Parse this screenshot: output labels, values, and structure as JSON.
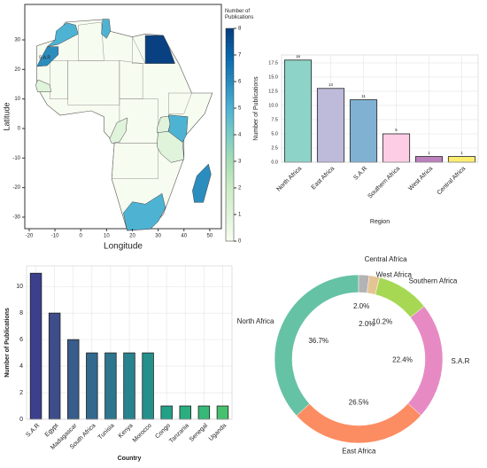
{
  "chart_data": [
    {
      "type": "map",
      "xlabel": "Longitude",
      "ylabel": "Latitude",
      "xlim": [
        -21.7,
        54.5
      ],
      "ylim": [
        -33.9,
        42
      ],
      "xticks": [
        -20,
        -10,
        0,
        10,
        20,
        30,
        40,
        50
      ],
      "yticks": [
        -30,
        -20,
        -10,
        0,
        10,
        20,
        30
      ],
      "colorbar": {
        "label": "Number of Publications",
        "lim": [
          0,
          8
        ],
        "ticks": [
          0,
          1,
          2,
          3,
          4,
          5,
          6,
          7,
          8
        ]
      },
      "values": [
        8,
        6,
        5,
        5,
        5,
        5,
        1,
        1,
        1,
        1
      ],
      "annotation": "S.A.R"
    },
    {
      "type": "bar",
      "xlabel": "Region",
      "ylabel": "Number of Publications",
      "categories": [
        "North Africa",
        "East Africa",
        "S.A.R",
        "Southern Africa",
        "West Africa",
        "Central Africa"
      ],
      "values": [
        18,
        13,
        11,
        5,
        1,
        1
      ],
      "colors": [
        "#8dd3c7",
        "#bebada",
        "#80b1d3",
        "#fccde5",
        "#bc80bd",
        "#ffed6f"
      ],
      "ylim": [
        0,
        18.9
      ],
      "yticks": [
        0.0,
        2.5,
        5.0,
        7.5,
        10.0,
        12.5,
        15.0,
        17.5
      ],
      "value_labels_shown": true
    },
    {
      "type": "bar",
      "xlabel": "Country",
      "ylabel": "Number of Publications",
      "categories": [
        "S.A.R",
        "Egypt",
        "Madagascar",
        "South Africa",
        "Tunisia",
        "Kenya",
        "Morocco",
        "Congo",
        "Tanzania",
        "Senegal",
        "Uganda"
      ],
      "values": [
        11,
        8,
        6,
        5,
        5,
        5,
        5,
        1,
        1,
        1,
        1
      ],
      "colors": [
        "#3b3f8c",
        "#3d4d8a",
        "#385c8c",
        "#33698d",
        "#2e768e",
        "#29838e",
        "#24908c",
        "#22a187",
        "#2aae7f",
        "#38b977",
        "#48c16e"
      ],
      "ylim": [
        0,
        11.55
      ],
      "yticks": [
        0,
        2,
        4,
        6,
        8,
        10
      ]
    },
    {
      "type": "donut",
      "categories": [
        "North Africa",
        "East Africa",
        "S.A.R",
        "Southern Africa",
        "West Africa",
        "Central Africa"
      ],
      "values": [
        36.7,
        26.5,
        22.4,
        10.2,
        2.0,
        2.0
      ],
      "value_labels": [
        "36.7%",
        "26.5%",
        "22.4%",
        "10.2%",
        "2.0%",
        "2.0%"
      ],
      "colors": [
        "#66c2a5",
        "#fc8d62",
        "#e78ac3",
        "#a6d854",
        "#e5c494",
        "#b3b3b3"
      ]
    }
  ]
}
